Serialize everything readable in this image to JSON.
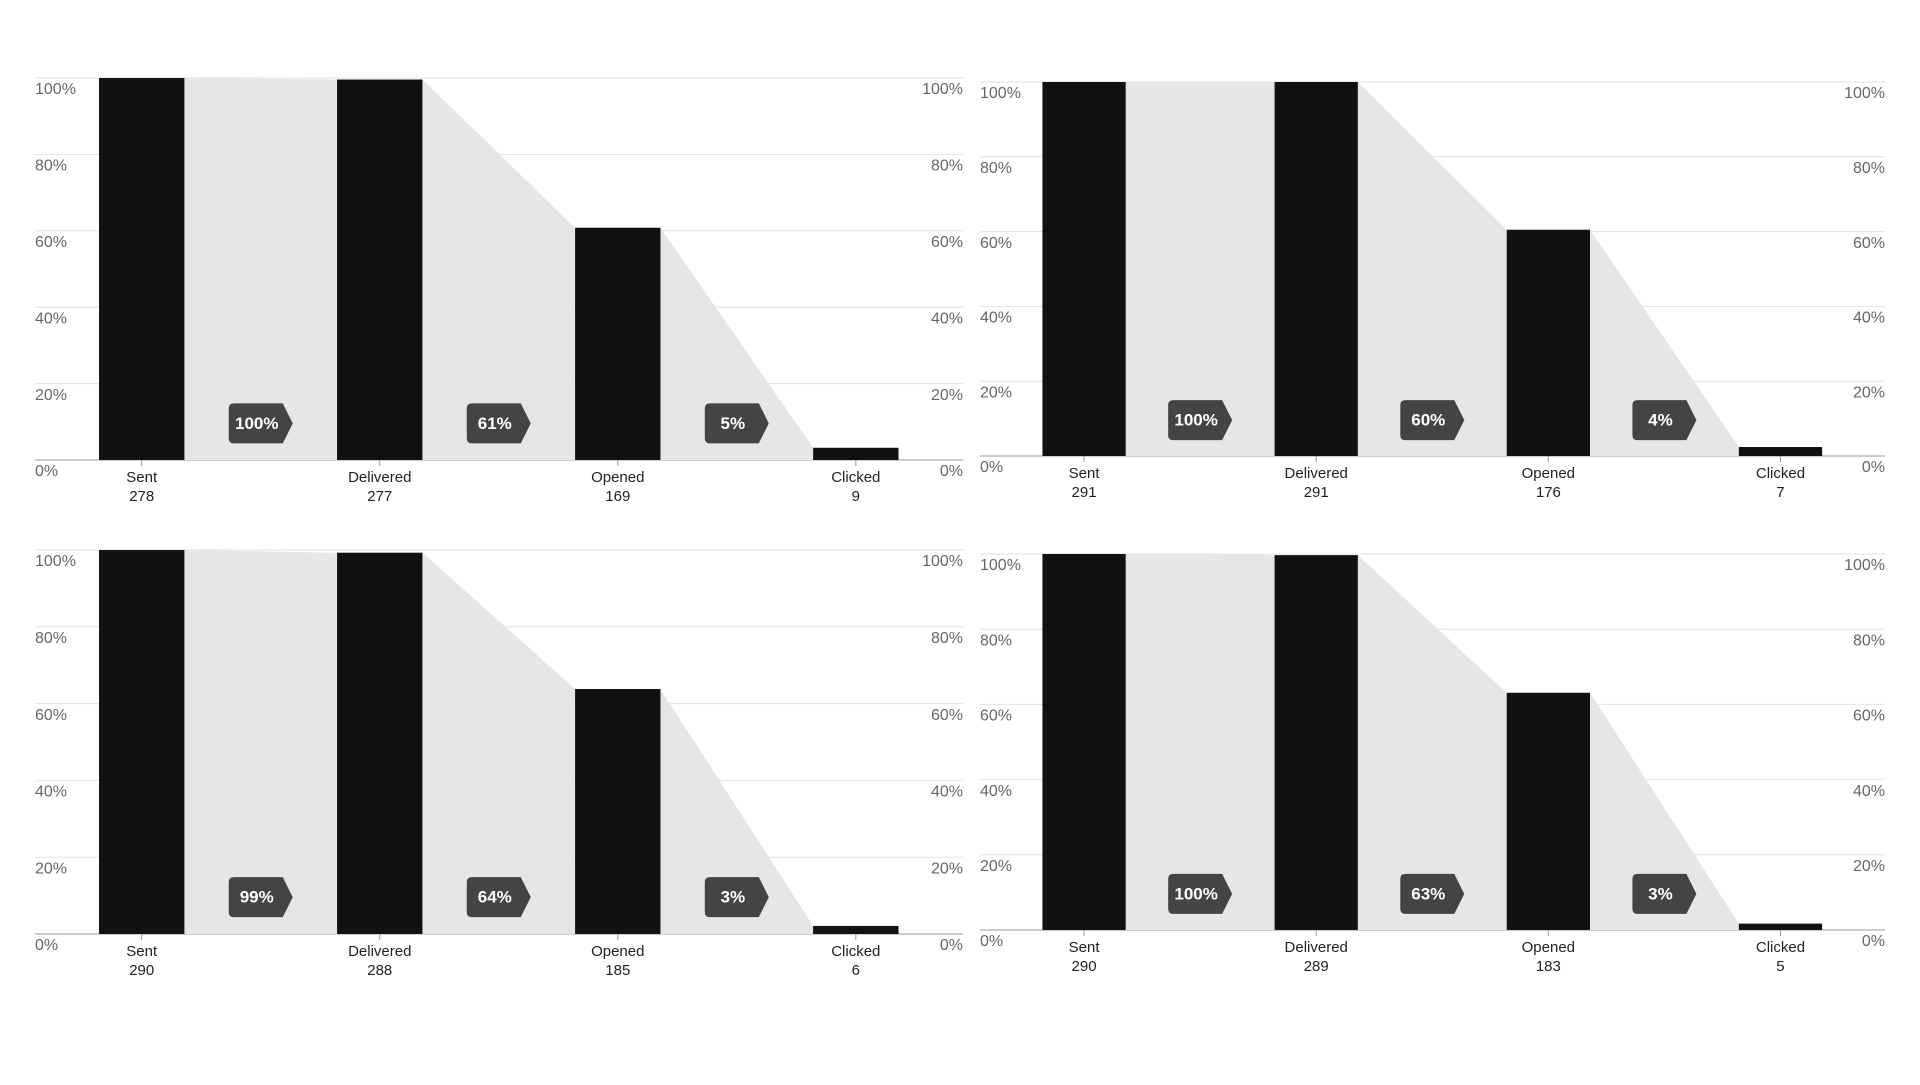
{
  "chart_data": [
    {
      "type": "funnel",
      "categories": [
        "Sent",
        "Delivered",
        "Opened",
        "Clicked"
      ],
      "counts": [
        278,
        277,
        169,
        9
      ],
      "values": [
        100,
        99.6,
        60.8,
        3.2
      ],
      "conversions": [
        100,
        61,
        5
      ],
      "conversion_labels": [
        "100%",
        "61%",
        "5%"
      ],
      "color": "#111111",
      "area_color": "#e6e6e6",
      "badge_color": "#444444",
      "ylim": [
        0,
        100
      ],
      "yticks": [
        {
          "value": 0,
          "label": "0%"
        },
        {
          "value": 20,
          "label": "20%"
        },
        {
          "value": 40,
          "label": "40%"
        },
        {
          "value": 60,
          "label": "60%"
        },
        {
          "value": 80,
          "label": "80%"
        },
        {
          "value": 100,
          "label": "100%"
        }
      ],
      "grid": true
    },
    {
      "type": "funnel",
      "categories": [
        "Sent",
        "Delivered",
        "Opened",
        "Clicked"
      ],
      "counts": [
        291,
        291,
        176,
        7
      ],
      "values": [
        100,
        100,
        60.5,
        2.4
      ],
      "conversions": [
        100,
        60,
        4
      ],
      "conversion_labels": [
        "100%",
        "60%",
        "4%"
      ],
      "color": "#111111",
      "area_color": "#e6e6e6",
      "badge_color": "#444444",
      "ylim": [
        0,
        100
      ],
      "yticks": [
        {
          "value": 0,
          "label": "0%"
        },
        {
          "value": 20,
          "label": "20%"
        },
        {
          "value": 40,
          "label": "40%"
        },
        {
          "value": 60,
          "label": "60%"
        },
        {
          "value": 80,
          "label": "80%"
        },
        {
          "value": 100,
          "label": "100%"
        }
      ],
      "grid": true
    },
    {
      "type": "funnel",
      "categories": [
        "Sent",
        "Delivered",
        "Opened",
        "Clicked"
      ],
      "counts": [
        290,
        288,
        185,
        6
      ],
      "values": [
        100,
        99.3,
        63.8,
        2.1
      ],
      "conversions": [
        99,
        64,
        3
      ],
      "conversion_labels": [
        "99%",
        "64%",
        "3%"
      ],
      "color": "#111111",
      "area_color": "#e6e6e6",
      "badge_color": "#444444",
      "ylim": [
        0,
        100
      ],
      "yticks": [
        {
          "value": 0,
          "label": "0%"
        },
        {
          "value": 20,
          "label": "20%"
        },
        {
          "value": 40,
          "label": "40%"
        },
        {
          "value": 60,
          "label": "60%"
        },
        {
          "value": 80,
          "label": "80%"
        },
        {
          "value": 100,
          "label": "100%"
        }
      ],
      "grid": true
    },
    {
      "type": "funnel",
      "categories": [
        "Sent",
        "Delivered",
        "Opened",
        "Clicked"
      ],
      "counts": [
        290,
        289,
        183,
        5
      ],
      "values": [
        100,
        99.7,
        63.1,
        1.7
      ],
      "conversions": [
        100,
        63,
        3
      ],
      "conversion_labels": [
        "100%",
        "63%",
        "3%"
      ],
      "color": "#111111",
      "area_color": "#e6e6e6",
      "badge_color": "#444444",
      "ylim": [
        0,
        100
      ],
      "yticks": [
        {
          "value": 0,
          "label": "0%"
        },
        {
          "value": 20,
          "label": "20%"
        },
        {
          "value": 40,
          "label": "40%"
        },
        {
          "value": 60,
          "label": "60%"
        },
        {
          "value": 80,
          "label": "80%"
        },
        {
          "value": 100,
          "label": "100%"
        }
      ],
      "grid": true
    }
  ]
}
